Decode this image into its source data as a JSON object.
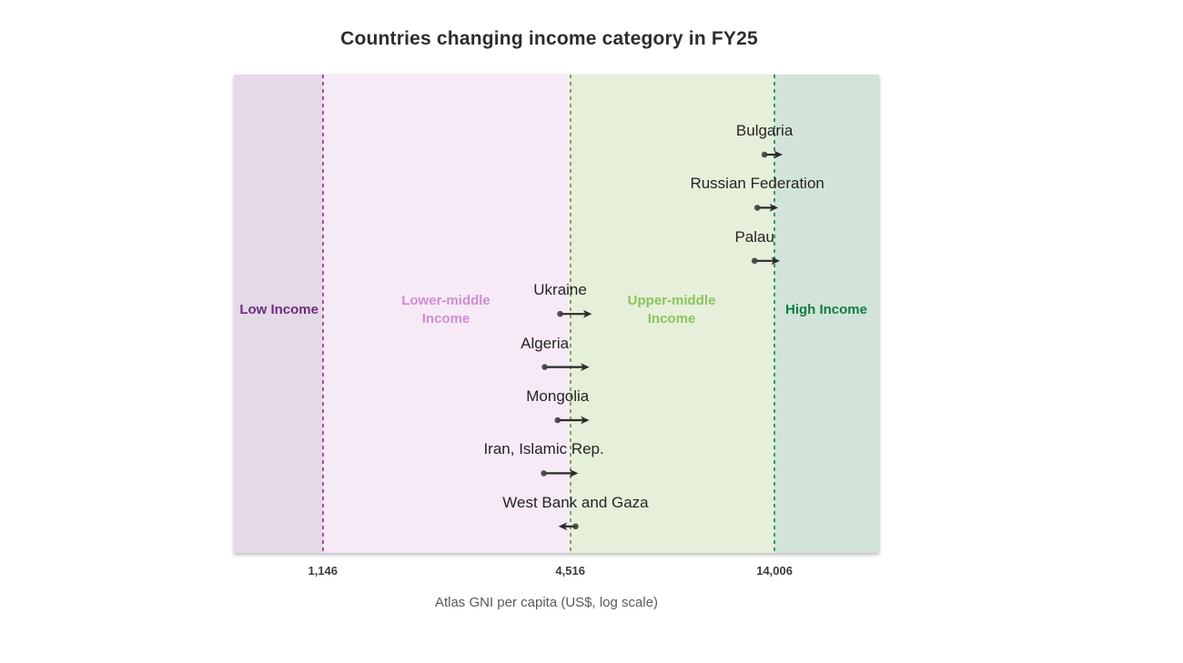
{
  "title": "Countries changing income category in FY25",
  "axis": {
    "label": "Atlas GNI per capita (US$, log scale)",
    "scale": "log",
    "xlim": [
      700,
      25000
    ],
    "ticks": [
      {
        "value": 1146,
        "label": "1,146",
        "line_color": "#a2529f"
      },
      {
        "value": 4516,
        "label": "4,516",
        "line_color": "#7fa653"
      },
      {
        "value": 14006,
        "label": "14,006",
        "line_color": "#33996e"
      }
    ]
  },
  "bands": [
    {
      "label": "Low Income",
      "from": 700,
      "to": 1146,
      "fill": "#e4d9e6",
      "label_color": "#6f2c7d"
    },
    {
      "label": "Lower-middle Income",
      "from": 1146,
      "to": 4516,
      "fill": "#f6eaf6",
      "label_color": "#cf8ed1"
    },
    {
      "label": "Upper-middle Income",
      "from": 4516,
      "to": 14006,
      "fill": "#e6efd9",
      "label_color": "#8cc45c"
    },
    {
      "label": "High Income",
      "from": 14006,
      "to": 25000,
      "fill": "#d2e4d9",
      "label_color": "#0f7c44"
    }
  ],
  "chart_data": {
    "type": "scatter",
    "variant": "arrow-change-chart",
    "title": "Countries changing income category in FY25",
    "xlabel": "Atlas GNI per capita (US$, log scale)",
    "xscale": "log",
    "xlim": [
      700,
      25000
    ],
    "category_thresholds": [
      1146,
      4516,
      14006
    ],
    "categories_bands": [
      "Low Income",
      "Lower-middle Income",
      "Upper-middle Income",
      "High Income"
    ],
    "countries": [
      {
        "name": "Bulgaria",
        "from": 13250,
        "to": 14650
      },
      {
        "name": "Russian Federation",
        "from": 12730,
        "to": 14290
      },
      {
        "name": "Palau",
        "from": 12540,
        "to": 14430
      },
      {
        "name": "Ukraine",
        "from": 4270,
        "to": 5090
      },
      {
        "name": "Algeria",
        "from": 3920,
        "to": 5020
      },
      {
        "name": "Mongolia",
        "from": 4210,
        "to": 5020
      },
      {
        "name": "Iran, Islamic Rep.",
        "from": 3900,
        "to": 4720
      },
      {
        "name": "West Bank and Gaza",
        "from": 4650,
        "to": 4230
      }
    ]
  },
  "colors": {
    "background": "#ffffff",
    "title_text": "#2d2d2d",
    "country_label": "#252525",
    "tick_label": "#3c3c3c",
    "axis_label": "#5a5a5a",
    "arrow": "#2b2b2b",
    "arrow_dot": "#3f3f3f"
  }
}
